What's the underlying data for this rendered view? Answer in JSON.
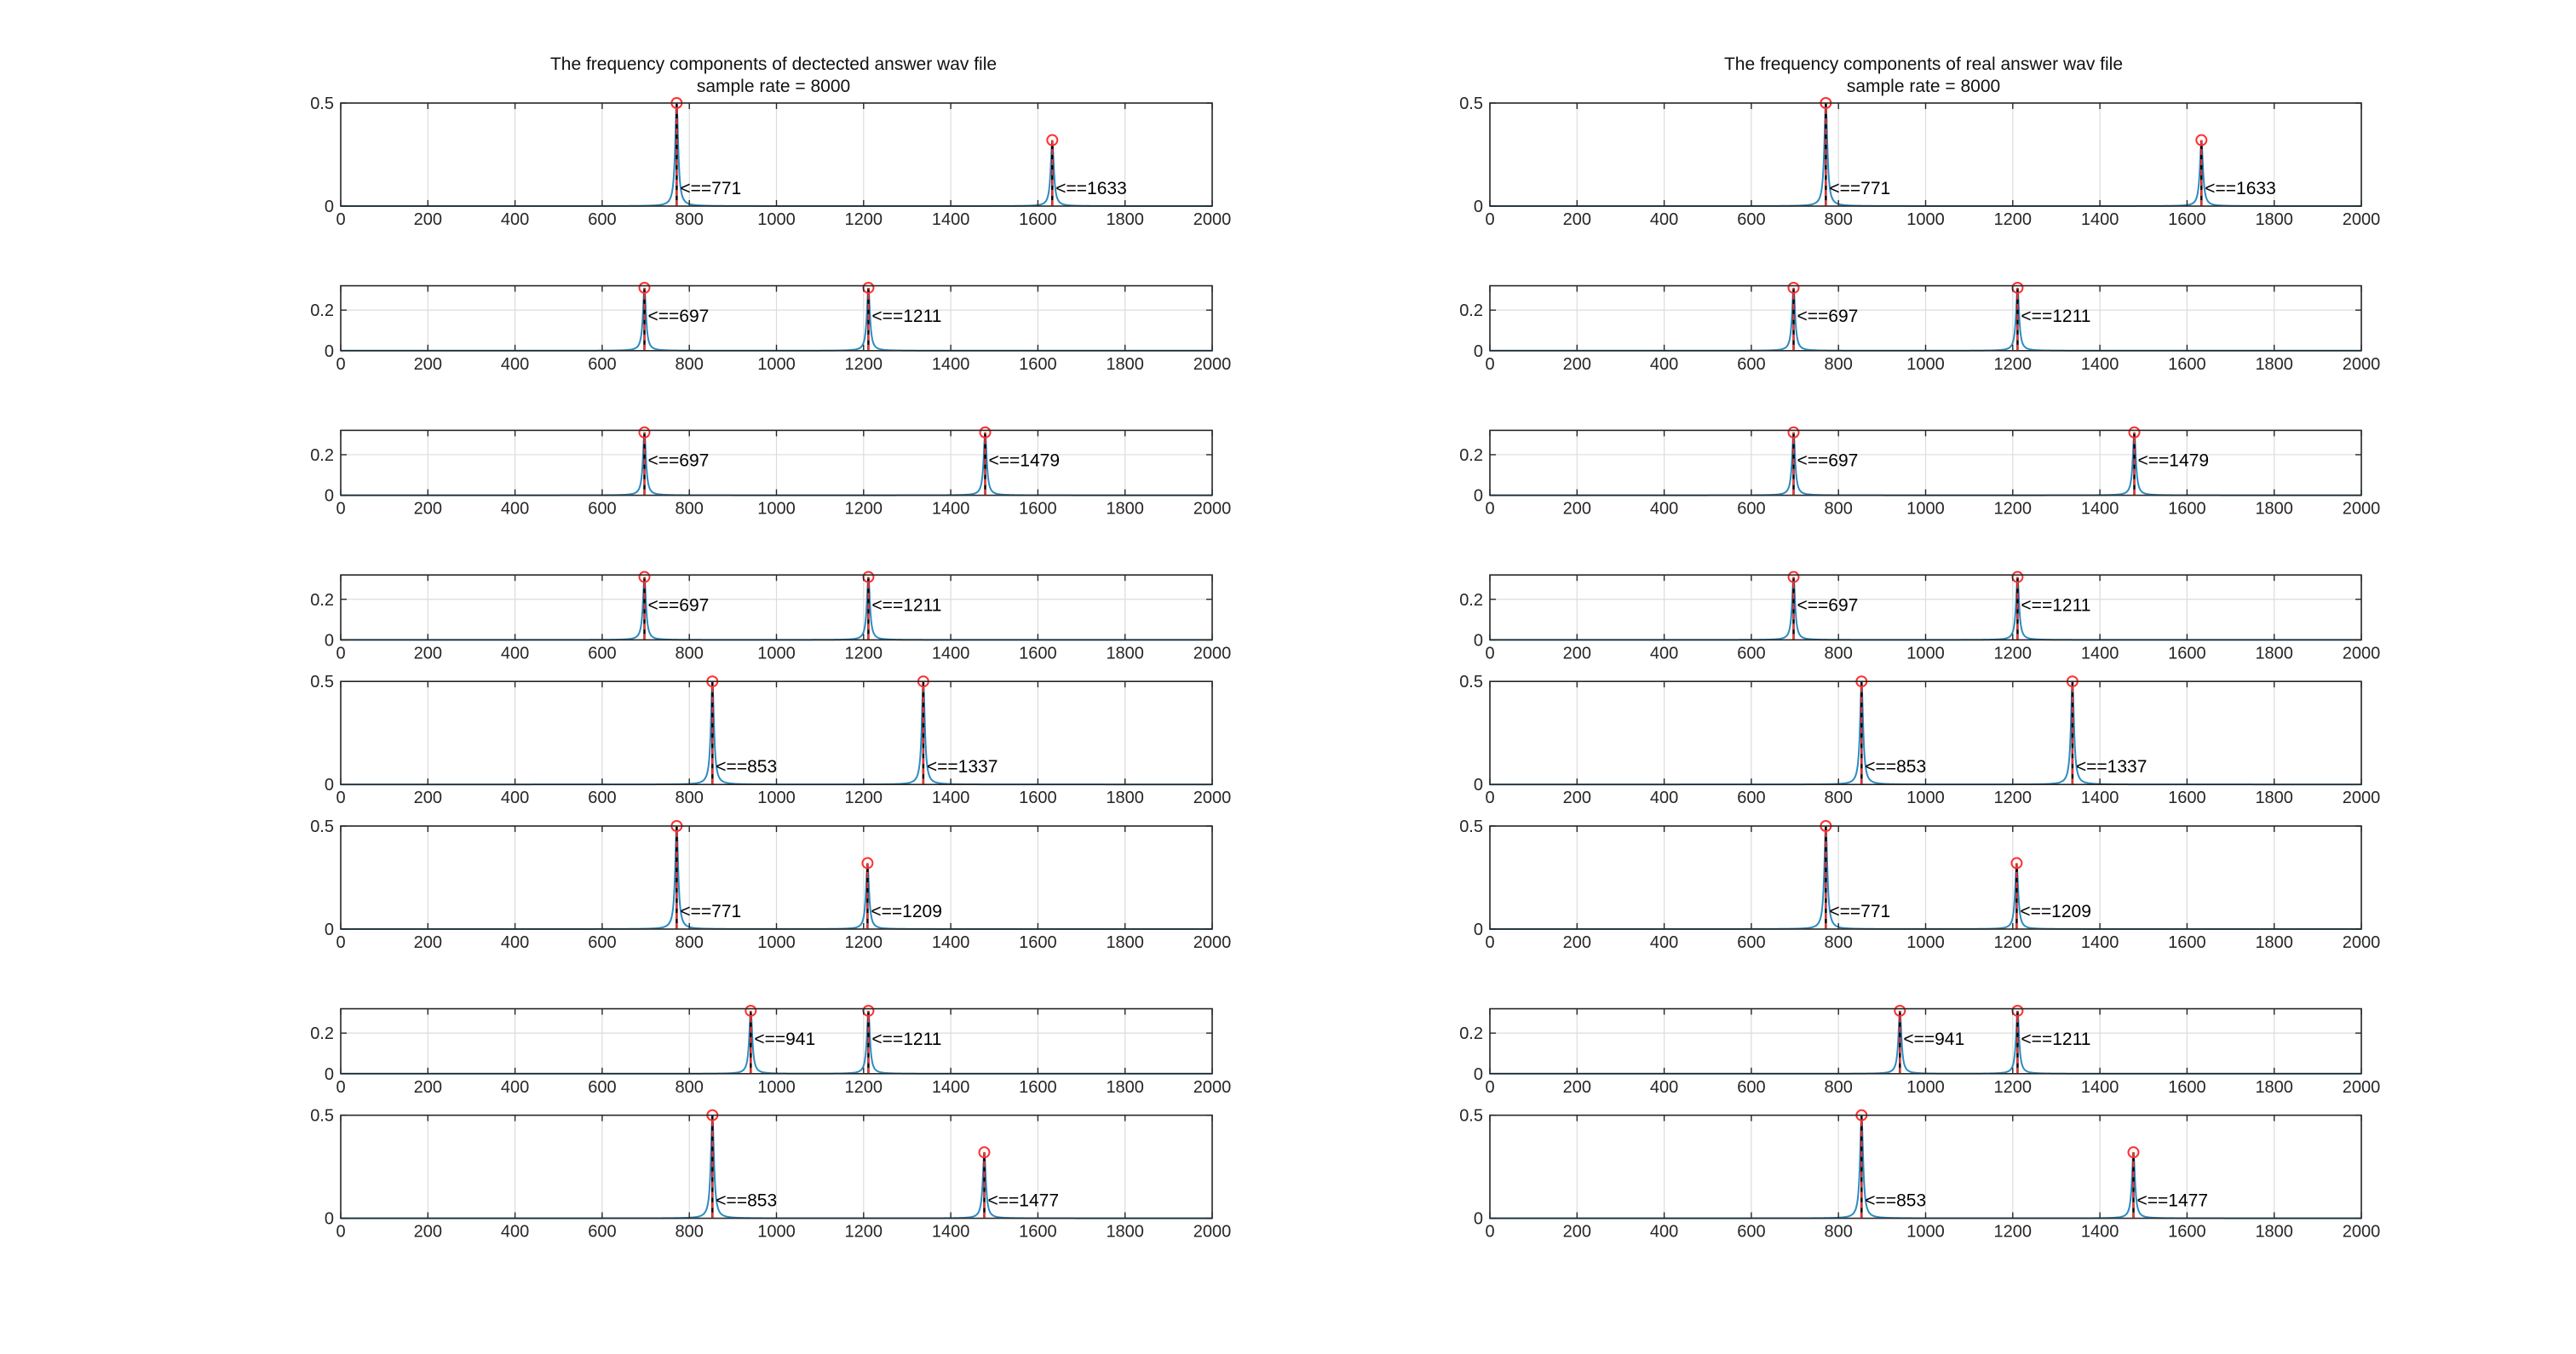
{
  "colors": {
    "spectrum": "#2E8BC0",
    "stem": "#FF3030",
    "marker": "#FF3030",
    "peak_line": "#000000"
  },
  "chart_data": [
    {
      "type": "line",
      "title": [
        "The frequency components of dectected answer wav file",
        "sample rate = 8000"
      ],
      "xlabel": "",
      "ylabel": "",
      "grid": true,
      "panels": [
        {
          "xlim": [
            0,
            2000
          ],
          "ylim": [
            0,
            0.5
          ],
          "yticks": [
            0,
            0.5
          ],
          "xticks": [
            0,
            200,
            400,
            600,
            800,
            1000,
            1200,
            1400,
            1600,
            1800,
            2000
          ],
          "peaks": [
            {
              "freq": 771,
              "amplitude": 0.5,
              "label": "<==771"
            },
            {
              "freq": 1633,
              "amplitude": 0.32,
              "label": "<==1633"
            }
          ]
        },
        {
          "xlim": [
            0,
            2000
          ],
          "ylim": [
            0,
            0.32
          ],
          "yticks": [
            0,
            0.2
          ],
          "xticks": [
            0,
            200,
            400,
            600,
            800,
            1000,
            1200,
            1400,
            1600,
            1800,
            2000
          ],
          "peaks": [
            {
              "freq": 697,
              "amplitude": 0.31,
              "label": "<==697"
            },
            {
              "freq": 1211,
              "amplitude": 0.31,
              "label": "<==1211"
            }
          ]
        },
        {
          "xlim": [
            0,
            2000
          ],
          "ylim": [
            0,
            0.32
          ],
          "yticks": [
            0,
            0.2
          ],
          "xticks": [
            0,
            200,
            400,
            600,
            800,
            1000,
            1200,
            1400,
            1600,
            1800,
            2000
          ],
          "peaks": [
            {
              "freq": 697,
              "amplitude": 0.31,
              "label": "<==697"
            },
            {
              "freq": 1479,
              "amplitude": 0.31,
              "label": "<==1479"
            }
          ]
        },
        {
          "xlim": [
            0,
            2000
          ],
          "ylim": [
            0,
            0.32
          ],
          "yticks": [
            0,
            0.2
          ],
          "xticks": [
            0,
            200,
            400,
            600,
            800,
            1000,
            1200,
            1400,
            1600,
            1800,
            2000
          ],
          "peaks": [
            {
              "freq": 697,
              "amplitude": 0.31,
              "label": "<==697"
            },
            {
              "freq": 1211,
              "amplitude": 0.31,
              "label": "<==1211"
            }
          ]
        },
        {
          "xlim": [
            0,
            2000
          ],
          "ylim": [
            0,
            0.5
          ],
          "yticks": [
            0,
            0.5
          ],
          "xticks": [
            0,
            200,
            400,
            600,
            800,
            1000,
            1200,
            1400,
            1600,
            1800,
            2000
          ],
          "peaks": [
            {
              "freq": 853,
              "amplitude": 0.5,
              "label": "<==853"
            },
            {
              "freq": 1337,
              "amplitude": 0.5,
              "label": "<==1337"
            }
          ]
        },
        {
          "xlim": [
            0,
            2000
          ],
          "ylim": [
            0,
            0.5
          ],
          "yticks": [
            0,
            0.5
          ],
          "xticks": [
            0,
            200,
            400,
            600,
            800,
            1000,
            1200,
            1400,
            1600,
            1800,
            2000
          ],
          "peaks": [
            {
              "freq": 771,
              "amplitude": 0.5,
              "label": "<==771"
            },
            {
              "freq": 1209,
              "amplitude": 0.32,
              "label": "<==1209"
            }
          ]
        },
        {
          "xlim": [
            0,
            2000
          ],
          "ylim": [
            0,
            0.32
          ],
          "yticks": [
            0,
            0.2
          ],
          "xticks": [
            0,
            200,
            400,
            600,
            800,
            1000,
            1200,
            1400,
            1600,
            1800,
            2000
          ],
          "peaks": [
            {
              "freq": 941,
              "amplitude": 0.31,
              "label": "<==941"
            },
            {
              "freq": 1211,
              "amplitude": 0.31,
              "label": "<==1211"
            }
          ]
        },
        {
          "xlim": [
            0,
            2000
          ],
          "ylim": [
            0,
            0.5
          ],
          "yticks": [
            0,
            0.5
          ],
          "xticks": [
            0,
            200,
            400,
            600,
            800,
            1000,
            1200,
            1400,
            1600,
            1800,
            2000
          ],
          "peaks": [
            {
              "freq": 853,
              "amplitude": 0.5,
              "label": "<==853"
            },
            {
              "freq": 1477,
              "amplitude": 0.32,
              "label": "<==1477"
            }
          ]
        }
      ]
    },
    {
      "type": "line",
      "title": [
        "The frequency components of real answer wav file",
        "sample rate = 8000"
      ],
      "xlabel": "",
      "ylabel": "",
      "grid": true,
      "panels": [
        {
          "xlim": [
            0,
            2000
          ],
          "ylim": [
            0,
            0.5
          ],
          "yticks": [
            0,
            0.5
          ],
          "xticks": [
            0,
            200,
            400,
            600,
            800,
            1000,
            1200,
            1400,
            1600,
            1800,
            2000
          ],
          "peaks": [
            {
              "freq": 771,
              "amplitude": 0.5,
              "label": "<==771"
            },
            {
              "freq": 1633,
              "amplitude": 0.32,
              "label": "<==1633"
            }
          ]
        },
        {
          "xlim": [
            0,
            2000
          ],
          "ylim": [
            0,
            0.32
          ],
          "yticks": [
            0,
            0.2
          ],
          "xticks": [
            0,
            200,
            400,
            600,
            800,
            1000,
            1200,
            1400,
            1600,
            1800,
            2000
          ],
          "peaks": [
            {
              "freq": 697,
              "amplitude": 0.31,
              "label": "<==697"
            },
            {
              "freq": 1211,
              "amplitude": 0.31,
              "label": "<==1211"
            }
          ]
        },
        {
          "xlim": [
            0,
            2000
          ],
          "ylim": [
            0,
            0.32
          ],
          "yticks": [
            0,
            0.2
          ],
          "xticks": [
            0,
            200,
            400,
            600,
            800,
            1000,
            1200,
            1400,
            1600,
            1800,
            2000
          ],
          "peaks": [
            {
              "freq": 697,
              "amplitude": 0.31,
              "label": "<==697"
            },
            {
              "freq": 1479,
              "amplitude": 0.31,
              "label": "<==1479"
            }
          ]
        },
        {
          "xlim": [
            0,
            2000
          ],
          "ylim": [
            0,
            0.32
          ],
          "yticks": [
            0,
            0.2
          ],
          "xticks": [
            0,
            200,
            400,
            600,
            800,
            1000,
            1200,
            1400,
            1600,
            1800,
            2000
          ],
          "peaks": [
            {
              "freq": 697,
              "amplitude": 0.31,
              "label": "<==697"
            },
            {
              "freq": 1211,
              "amplitude": 0.31,
              "label": "<==1211"
            }
          ]
        },
        {
          "xlim": [
            0,
            2000
          ],
          "ylim": [
            0,
            0.5
          ],
          "yticks": [
            0,
            0.5
          ],
          "xticks": [
            0,
            200,
            400,
            600,
            800,
            1000,
            1200,
            1400,
            1600,
            1800,
            2000
          ],
          "peaks": [
            {
              "freq": 853,
              "amplitude": 0.5,
              "label": "<==853"
            },
            {
              "freq": 1337,
              "amplitude": 0.5,
              "label": "<==1337"
            }
          ]
        },
        {
          "xlim": [
            0,
            2000
          ],
          "ylim": [
            0,
            0.5
          ],
          "yticks": [
            0,
            0.5
          ],
          "xticks": [
            0,
            200,
            400,
            600,
            800,
            1000,
            1200,
            1400,
            1600,
            1800,
            2000
          ],
          "peaks": [
            {
              "freq": 771,
              "amplitude": 0.5,
              "label": "<==771"
            },
            {
              "freq": 1209,
              "amplitude": 0.32,
              "label": "<==1209"
            }
          ]
        },
        {
          "xlim": [
            0,
            2000
          ],
          "ylim": [
            0,
            0.32
          ],
          "yticks": [
            0,
            0.2
          ],
          "xticks": [
            0,
            200,
            400,
            600,
            800,
            1000,
            1200,
            1400,
            1600,
            1800,
            2000
          ],
          "peaks": [
            {
              "freq": 941,
              "amplitude": 0.31,
              "label": "<==941"
            },
            {
              "freq": 1211,
              "amplitude": 0.31,
              "label": "<==1211"
            }
          ]
        },
        {
          "xlim": [
            0,
            2000
          ],
          "ylim": [
            0,
            0.5
          ],
          "yticks": [
            0,
            0.5
          ],
          "xticks": [
            0,
            200,
            400,
            600,
            800,
            1000,
            1200,
            1400,
            1600,
            1800,
            2000
          ],
          "peaks": [
            {
              "freq": 853,
              "amplitude": 0.5,
              "label": "<==853"
            },
            {
              "freq": 1477,
              "amplitude": 0.32,
              "label": "<==1477"
            }
          ]
        }
      ]
    }
  ]
}
